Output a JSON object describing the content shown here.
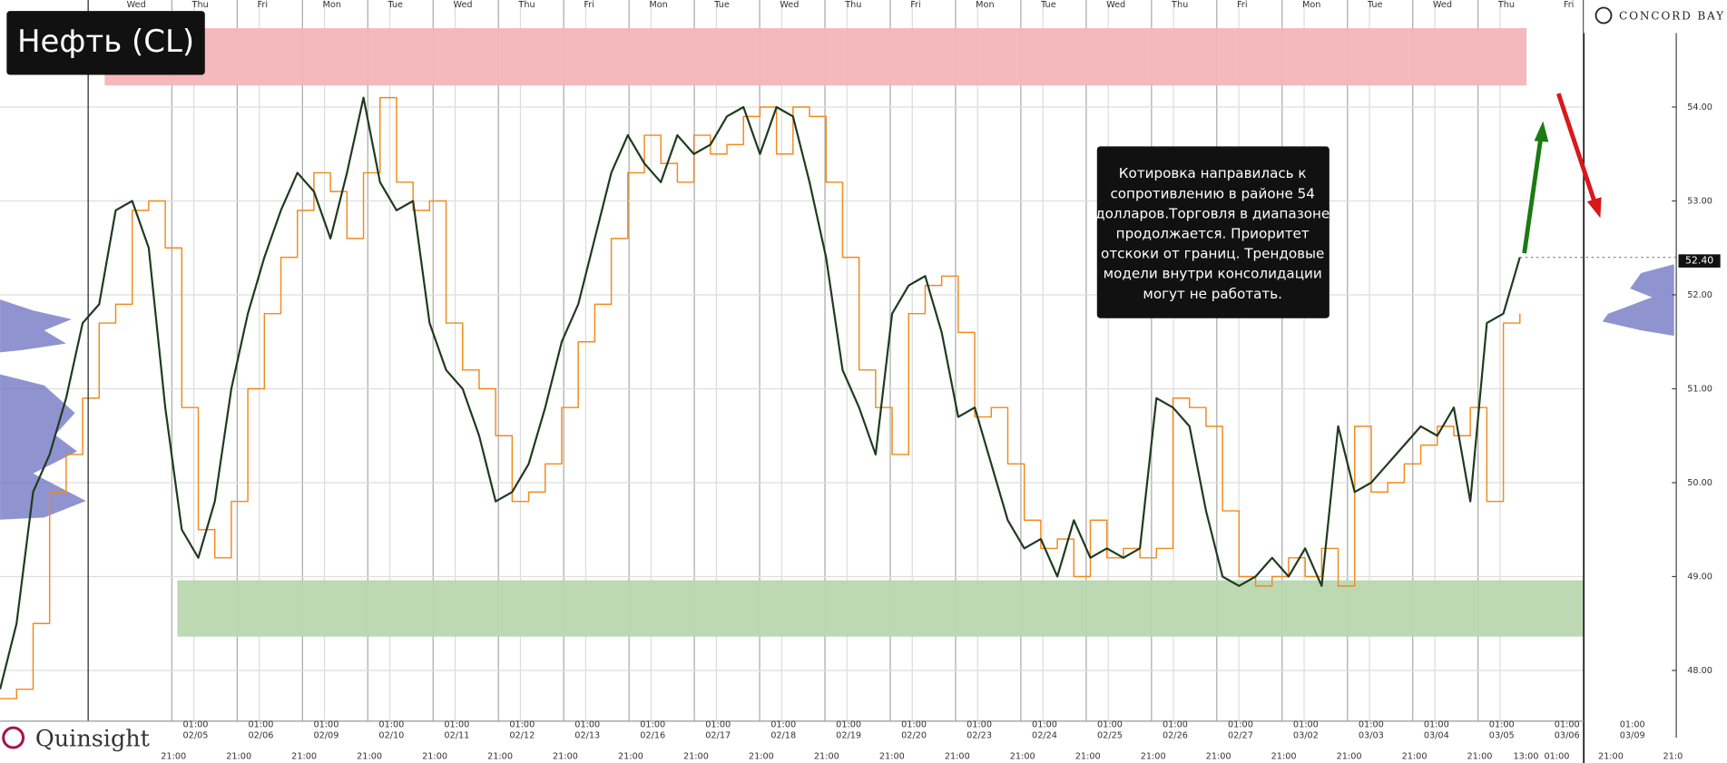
{
  "chart_data": {
    "type": "line",
    "title": "Нефть (CL)",
    "brand_left": "Quinsight",
    "brand_right": "CONCORD BAY",
    "annotation": [
      "Котировка направилась к",
      "сопротивлению в районе 54",
      "долларов.Торговля в диапазоне",
      "продолжается. Приоритет",
      "отскоки от границ. Трендовые",
      "модели внутри консолидации",
      "могут не работать."
    ],
    "last_price": 52.4,
    "last_price_label": "52.40",
    "ylim": [
      47.46,
      55.14
    ],
    "yticks": [
      {
        "value": 48,
        "label": "48.00"
      },
      {
        "value": 49,
        "label": "49.00"
      },
      {
        "value": 50,
        "label": "50.00"
      },
      {
        "value": 51,
        "label": "51.00"
      },
      {
        "value": 52,
        "label": "52.00"
      },
      {
        "value": 53,
        "label": "53.00"
      },
      {
        "value": 54,
        "label": "54.00"
      }
    ],
    "grid": true,
    "zones": [
      {
        "from": 54.23,
        "to": 54.84,
        "color": "#f4b4b8"
      },
      {
        "from": 48.36,
        "to": 48.96,
        "color": "#b9d7b0"
      }
    ],
    "day_labels": [
      "Wed",
      "Thu",
      "Fri",
      "Mon",
      "Tue",
      "Wed",
      "Thu",
      "Fri",
      "Mon",
      "Tue",
      "Wed",
      "Thu",
      "Fri",
      "Mon",
      "Tue",
      "Wed",
      "Thu",
      "Fri",
      "Mon",
      "Tue",
      "Wed",
      "Thu",
      "Fri"
    ],
    "date_labels": [
      "02/05",
      "02/06",
      "02/09",
      "02/10",
      "02/11",
      "02/12",
      "02/13",
      "02/16",
      "02/17",
      "02/18",
      "02/19",
      "02/20",
      "02/23",
      "02/24",
      "02/25",
      "02/26",
      "02/27",
      "03/02",
      "03/03",
      "03/04",
      "03/05",
      "03/06",
      "03/09"
    ],
    "date_time": "01:00",
    "bottom_labels": [
      "21:00",
      "21:00",
      "21:00",
      "21:00",
      "21:00",
      "21:00",
      "21:00",
      "21:00",
      "21:00",
      "21:00",
      "21:00",
      "21:00",
      "21:00",
      "21:00",
      "21:00",
      "21:00",
      "21:00",
      "21:00",
      "21:00",
      "21:00",
      "21:00",
      "13:00",
      "01:00",
      "21:00",
      "21:0"
    ],
    "series": [
      {
        "color": "#1f3a1f",
        "values": [
          47.8,
          48.5,
          49.9,
          50.3,
          50.9,
          51.7,
          51.9,
          52.9,
          53.0,
          52.5,
          50.8,
          49.5,
          49.2,
          49.8,
          51.0,
          51.8,
          52.4,
          52.9,
          53.3,
          53.1,
          52.6,
          53.3,
          54.1,
          53.2,
          52.9,
          53.0,
          51.7,
          51.2,
          51.0,
          50.5,
          49.8,
          49.9,
          50.2,
          50.8,
          51.5,
          51.9,
          52.6,
          53.3,
          53.7,
          53.4,
          53.2,
          53.7,
          53.5,
          53.6,
          53.9,
          54.0,
          53.5,
          54.0,
          53.9,
          53.2,
          52.4,
          51.2,
          50.8,
          50.3,
          51.8,
          52.1,
          52.2,
          51.6,
          50.7,
          50.8,
          50.2,
          49.6,
          49.3,
          49.4,
          49.0,
          49.6,
          49.2,
          49.3,
          49.2,
          49.3,
          50.9,
          50.8,
          50.6,
          49.7,
          49.0,
          48.9,
          49.0,
          49.2,
          49.0,
          49.3,
          48.9,
          50.6,
          49.9,
          50.0,
          50.2,
          50.4,
          50.6,
          50.5,
          50.8,
          49.8,
          51.7,
          51.8,
          52.4
        ]
      },
      {
        "color": "#f08a1c",
        "step": true,
        "values": [
          47.7,
          47.8,
          48.5,
          49.9,
          50.3,
          50.9,
          51.7,
          51.9,
          52.9,
          53.0,
          52.5,
          50.8,
          49.5,
          49.2,
          49.8,
          51.0,
          51.8,
          52.4,
          52.9,
          53.3,
          53.1,
          52.6,
          53.3,
          54.1,
          53.2,
          52.9,
          53.0,
          51.7,
          51.2,
          51.0,
          50.5,
          49.8,
          49.9,
          50.2,
          50.8,
          51.5,
          51.9,
          52.6,
          53.3,
          53.7,
          53.4,
          53.2,
          53.7,
          53.5,
          53.6,
          53.9,
          54.0,
          53.5,
          54.0,
          53.9,
          53.2,
          52.4,
          51.2,
          50.8,
          50.3,
          51.8,
          52.1,
          52.2,
          51.6,
          50.7,
          50.8,
          50.2,
          49.6,
          49.3,
          49.4,
          49.0,
          49.6,
          49.2,
          49.3,
          49.2,
          49.3,
          50.9,
          50.8,
          50.6,
          49.7,
          49.0,
          48.9,
          49.0,
          49.2,
          49.0,
          49.3,
          48.9,
          50.6,
          49.9,
          50.0,
          50.2,
          50.4,
          50.6,
          50.5,
          50.8,
          49.8,
          51.7,
          51.8
        ]
      }
    ]
  }
}
